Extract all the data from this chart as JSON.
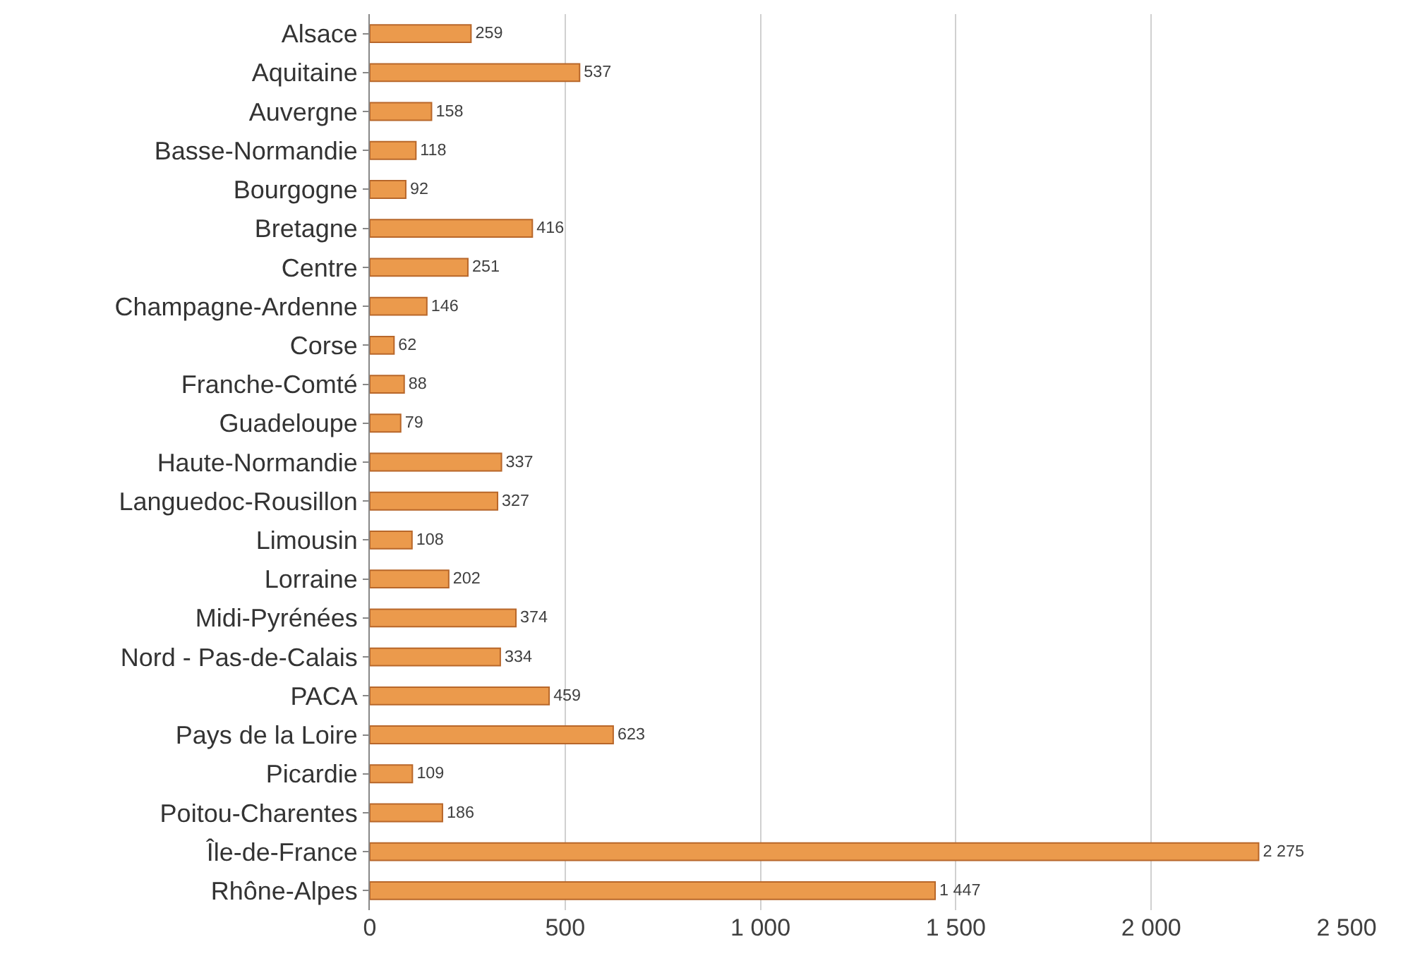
{
  "chart_data": {
    "type": "bar",
    "orientation": "horizontal",
    "categories": [
      "Alsace",
      "Aquitaine",
      "Auvergne",
      "Basse-Normandie",
      "Bourgogne",
      "Bretagne",
      "Centre",
      "Champagne-Ardenne",
      "Corse",
      "Franche-Comté",
      "Guadeloupe",
      "Haute-Normandie",
      "Languedoc-Rousillon",
      "Limousin",
      "Lorraine",
      "Midi-Pyrénées",
      "Nord - Pas-de-Calais",
      "PACA",
      "Pays de la Loire",
      "Picardie",
      "Poitou-Charentes",
      "Île-de-France",
      "Rhône-Alpes"
    ],
    "values": [
      259,
      537,
      158,
      118,
      92,
      416,
      251,
      146,
      62,
      88,
      79,
      337,
      327,
      108,
      202,
      374,
      334,
      459,
      623,
      109,
      186,
      2275,
      1447
    ],
    "value_labels": [
      "259",
      "537",
      "158",
      "118",
      "92",
      "416",
      "251",
      "146",
      "62",
      "88",
      "79",
      "337",
      "327",
      "108",
      "202",
      "374",
      "334",
      "459",
      "623",
      "109",
      "186",
      "2 275",
      "1 447"
    ],
    "color": "#eb9a4c",
    "xlim": [
      0,
      2500
    ],
    "xticks": [
      0,
      500,
      {
        "value": 1000,
        "label": "1 000"
      },
      {
        "value": 1500,
        "label": "1 500"
      },
      {
        "value": 2000,
        "label": "2 000"
      },
      {
        "value": 2500,
        "label": "2 500"
      }
    ],
    "grid": "x",
    "legend": false
  }
}
